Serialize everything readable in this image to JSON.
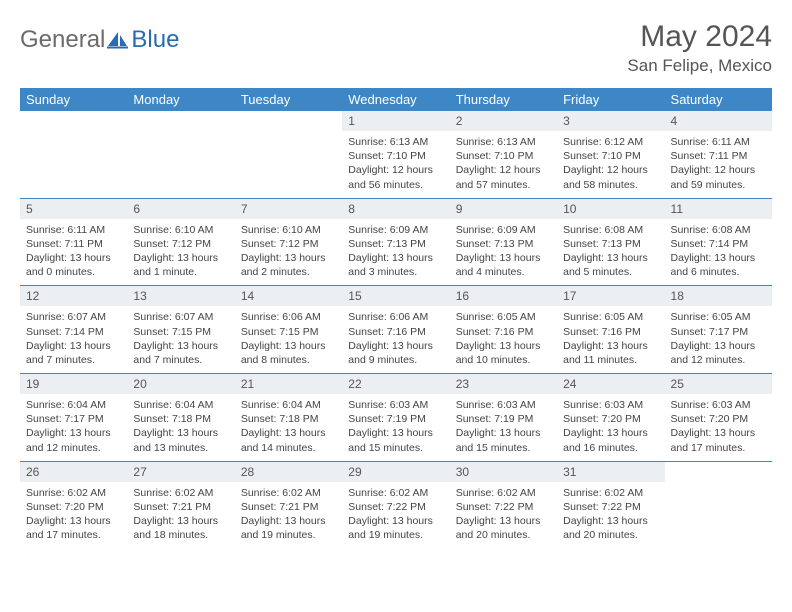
{
  "logo": {
    "text1": "General",
    "text2": "Blue"
  },
  "title": "May 2024",
  "location": "San Felipe, Mexico",
  "colors": {
    "header_bg": "#3d87c6",
    "header_text": "#ffffff",
    "daynum_bg": "#eceff1",
    "border": "#3d87c6",
    "logo_gray": "#6b6b6b",
    "logo_blue": "#2a6bb0"
  },
  "weekdays": [
    "Sunday",
    "Monday",
    "Tuesday",
    "Wednesday",
    "Thursday",
    "Friday",
    "Saturday"
  ],
  "weeks": [
    [
      {
        "n": "",
        "sr": "",
        "ss": "",
        "dl": ""
      },
      {
        "n": "",
        "sr": "",
        "ss": "",
        "dl": ""
      },
      {
        "n": "",
        "sr": "",
        "ss": "",
        "dl": ""
      },
      {
        "n": "1",
        "sr": "Sunrise: 6:13 AM",
        "ss": "Sunset: 7:10 PM",
        "dl": "Daylight: 12 hours and 56 minutes."
      },
      {
        "n": "2",
        "sr": "Sunrise: 6:13 AM",
        "ss": "Sunset: 7:10 PM",
        "dl": "Daylight: 12 hours and 57 minutes."
      },
      {
        "n": "3",
        "sr": "Sunrise: 6:12 AM",
        "ss": "Sunset: 7:10 PM",
        "dl": "Daylight: 12 hours and 58 minutes."
      },
      {
        "n": "4",
        "sr": "Sunrise: 6:11 AM",
        "ss": "Sunset: 7:11 PM",
        "dl": "Daylight: 12 hours and 59 minutes."
      }
    ],
    [
      {
        "n": "5",
        "sr": "Sunrise: 6:11 AM",
        "ss": "Sunset: 7:11 PM",
        "dl": "Daylight: 13 hours and 0 minutes."
      },
      {
        "n": "6",
        "sr": "Sunrise: 6:10 AM",
        "ss": "Sunset: 7:12 PM",
        "dl": "Daylight: 13 hours and 1 minute."
      },
      {
        "n": "7",
        "sr": "Sunrise: 6:10 AM",
        "ss": "Sunset: 7:12 PM",
        "dl": "Daylight: 13 hours and 2 minutes."
      },
      {
        "n": "8",
        "sr": "Sunrise: 6:09 AM",
        "ss": "Sunset: 7:13 PM",
        "dl": "Daylight: 13 hours and 3 minutes."
      },
      {
        "n": "9",
        "sr": "Sunrise: 6:09 AM",
        "ss": "Sunset: 7:13 PM",
        "dl": "Daylight: 13 hours and 4 minutes."
      },
      {
        "n": "10",
        "sr": "Sunrise: 6:08 AM",
        "ss": "Sunset: 7:13 PM",
        "dl": "Daylight: 13 hours and 5 minutes."
      },
      {
        "n": "11",
        "sr": "Sunrise: 6:08 AM",
        "ss": "Sunset: 7:14 PM",
        "dl": "Daylight: 13 hours and 6 minutes."
      }
    ],
    [
      {
        "n": "12",
        "sr": "Sunrise: 6:07 AM",
        "ss": "Sunset: 7:14 PM",
        "dl": "Daylight: 13 hours and 7 minutes."
      },
      {
        "n": "13",
        "sr": "Sunrise: 6:07 AM",
        "ss": "Sunset: 7:15 PM",
        "dl": "Daylight: 13 hours and 7 minutes."
      },
      {
        "n": "14",
        "sr": "Sunrise: 6:06 AM",
        "ss": "Sunset: 7:15 PM",
        "dl": "Daylight: 13 hours and 8 minutes."
      },
      {
        "n": "15",
        "sr": "Sunrise: 6:06 AM",
        "ss": "Sunset: 7:16 PM",
        "dl": "Daylight: 13 hours and 9 minutes."
      },
      {
        "n": "16",
        "sr": "Sunrise: 6:05 AM",
        "ss": "Sunset: 7:16 PM",
        "dl": "Daylight: 13 hours and 10 minutes."
      },
      {
        "n": "17",
        "sr": "Sunrise: 6:05 AM",
        "ss": "Sunset: 7:16 PM",
        "dl": "Daylight: 13 hours and 11 minutes."
      },
      {
        "n": "18",
        "sr": "Sunrise: 6:05 AM",
        "ss": "Sunset: 7:17 PM",
        "dl": "Daylight: 13 hours and 12 minutes."
      }
    ],
    [
      {
        "n": "19",
        "sr": "Sunrise: 6:04 AM",
        "ss": "Sunset: 7:17 PM",
        "dl": "Daylight: 13 hours and 12 minutes."
      },
      {
        "n": "20",
        "sr": "Sunrise: 6:04 AM",
        "ss": "Sunset: 7:18 PM",
        "dl": "Daylight: 13 hours and 13 minutes."
      },
      {
        "n": "21",
        "sr": "Sunrise: 6:04 AM",
        "ss": "Sunset: 7:18 PM",
        "dl": "Daylight: 13 hours and 14 minutes."
      },
      {
        "n": "22",
        "sr": "Sunrise: 6:03 AM",
        "ss": "Sunset: 7:19 PM",
        "dl": "Daylight: 13 hours and 15 minutes."
      },
      {
        "n": "23",
        "sr": "Sunrise: 6:03 AM",
        "ss": "Sunset: 7:19 PM",
        "dl": "Daylight: 13 hours and 15 minutes."
      },
      {
        "n": "24",
        "sr": "Sunrise: 6:03 AM",
        "ss": "Sunset: 7:20 PM",
        "dl": "Daylight: 13 hours and 16 minutes."
      },
      {
        "n": "25",
        "sr": "Sunrise: 6:03 AM",
        "ss": "Sunset: 7:20 PM",
        "dl": "Daylight: 13 hours and 17 minutes."
      }
    ],
    [
      {
        "n": "26",
        "sr": "Sunrise: 6:02 AM",
        "ss": "Sunset: 7:20 PM",
        "dl": "Daylight: 13 hours and 17 minutes."
      },
      {
        "n": "27",
        "sr": "Sunrise: 6:02 AM",
        "ss": "Sunset: 7:21 PM",
        "dl": "Daylight: 13 hours and 18 minutes."
      },
      {
        "n": "28",
        "sr": "Sunrise: 6:02 AM",
        "ss": "Sunset: 7:21 PM",
        "dl": "Daylight: 13 hours and 19 minutes."
      },
      {
        "n": "29",
        "sr": "Sunrise: 6:02 AM",
        "ss": "Sunset: 7:22 PM",
        "dl": "Daylight: 13 hours and 19 minutes."
      },
      {
        "n": "30",
        "sr": "Sunrise: 6:02 AM",
        "ss": "Sunset: 7:22 PM",
        "dl": "Daylight: 13 hours and 20 minutes."
      },
      {
        "n": "31",
        "sr": "Sunrise: 6:02 AM",
        "ss": "Sunset: 7:22 PM",
        "dl": "Daylight: 13 hours and 20 minutes."
      },
      {
        "n": "",
        "sr": "",
        "ss": "",
        "dl": ""
      }
    ]
  ]
}
